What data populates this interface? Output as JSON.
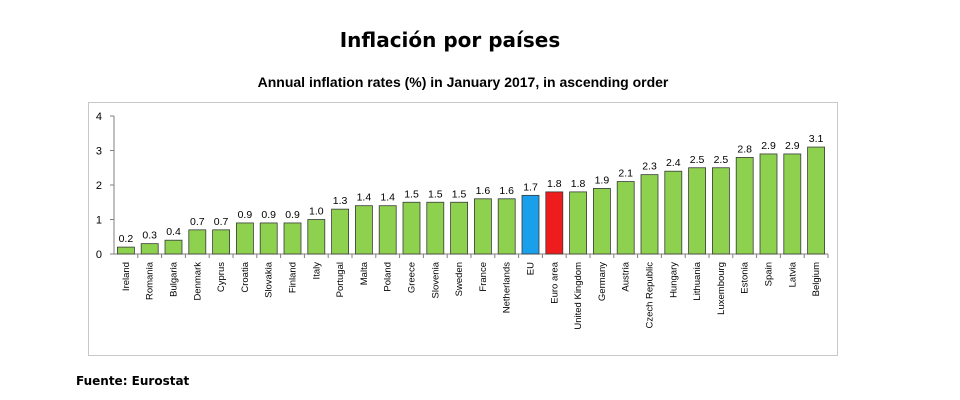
{
  "header": {
    "title": "Inflación por países"
  },
  "footer": {
    "source": "Fuente: Eurostat"
  },
  "colors": {
    "default": "#8dd14f",
    "eu": "#1a9fea",
    "euro_area": "#ee1c1c"
  },
  "chart_data": {
    "type": "bar",
    "title": "Annual inflation rates (%) in January 2017, in ascending order",
    "xlabel": "",
    "ylabel": "",
    "ylim": [
      0,
      4
    ],
    "yticks": [
      0,
      1,
      2,
      3,
      4
    ],
    "grid": false,
    "categories": [
      "Ireland",
      "Romania",
      "Bulgaria",
      "Denmark",
      "Cyprus",
      "Croatia",
      "Slovakia",
      "Finland",
      "Italy",
      "Portugal",
      "Malta",
      "Poland",
      "Greece",
      "Slovenia",
      "Sweden",
      "France",
      "Netherlands",
      "EU",
      "Euro area",
      "United Kingdom",
      "Germany",
      "Austria",
      "Czech Republic",
      "Hungary",
      "Lithuania",
      "Luxembourg",
      "Estonia",
      "Spain",
      "Latvia",
      "Belgium"
    ],
    "values": [
      0.2,
      0.3,
      0.4,
      0.7,
      0.7,
      0.9,
      0.9,
      0.9,
      1.0,
      1.3,
      1.4,
      1.4,
      1.5,
      1.5,
      1.5,
      1.6,
      1.6,
      1.7,
      1.8,
      1.8,
      1.9,
      2.1,
      2.3,
      2.4,
      2.5,
      2.5,
      2.8,
      2.9,
      2.9,
      3.1
    ],
    "value_labels": [
      "0.2",
      "0.3",
      "0.4",
      "0.7",
      "0.7",
      "0.9",
      "0.9",
      "0.9",
      "1.0",
      "1.3",
      "1.4",
      "1.4",
      "1.5",
      "1.5",
      "1.5",
      "1.6",
      "1.6",
      "1.7",
      "1.8",
      "1.8",
      "1.9",
      "2.1",
      "2.3",
      "2.4",
      "2.5",
      "2.5",
      "2.8",
      "2.9",
      "2.9",
      "3.1"
    ],
    "highlight": {
      "EU": "eu",
      "Euro area": "euro_area"
    }
  }
}
